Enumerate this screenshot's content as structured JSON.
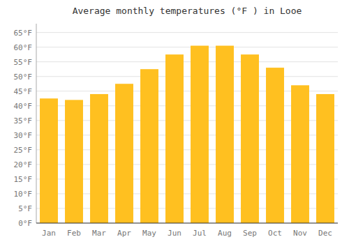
{
  "chart_data": {
    "type": "bar",
    "title": "Average monthly temperatures (°F ) in Looe",
    "categories": [
      "Jan",
      "Feb",
      "Mar",
      "Apr",
      "May",
      "Jun",
      "Jul",
      "Aug",
      "Sep",
      "Oct",
      "Nov",
      "Dec"
    ],
    "values": [
      42.5,
      42.0,
      44.0,
      47.5,
      52.5,
      57.5,
      60.5,
      60.5,
      57.5,
      53.0,
      47.0,
      44.0
    ],
    "color": "#FFC020",
    "ylim": [
      0,
      68
    ],
    "yticks": [
      {
        "value": 0,
        "label": "0°F"
      },
      {
        "value": 5,
        "label": "5°F"
      },
      {
        "value": 10,
        "label": "10°F"
      },
      {
        "value": 15,
        "label": "15°F"
      },
      {
        "value": 20,
        "label": "20°F"
      },
      {
        "value": 25,
        "label": "25°F"
      },
      {
        "value": 30,
        "label": "30°F"
      },
      {
        "value": 35,
        "label": "35°F"
      },
      {
        "value": 40,
        "label": "40°F"
      },
      {
        "value": 45,
        "label": "45°F"
      },
      {
        "value": 50,
        "label": "50°F"
      },
      {
        "value": 55,
        "label": "55°F"
      },
      {
        "value": 60,
        "label": "60°F"
      },
      {
        "value": 65,
        "label": "65°F"
      }
    ],
    "grid": true
  }
}
